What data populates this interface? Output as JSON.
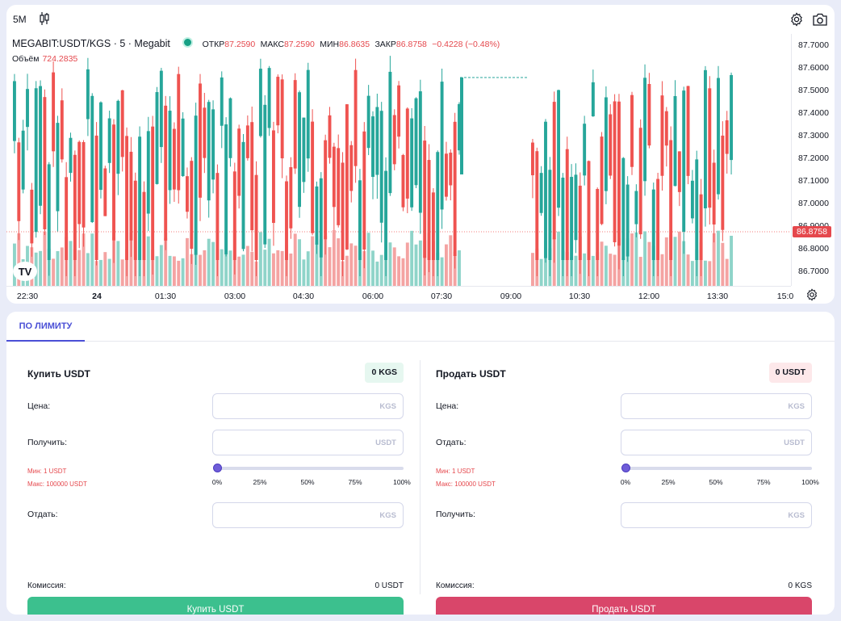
{
  "chart": {
    "interval": "5М",
    "symbol": "MEGABIT:USDT/KGS · 5 · Megabit",
    "ohlc": [
      {
        "label": "ОТКР",
        "value": "87.2590"
      },
      {
        "label": "МАКС",
        "value": "87.2590"
      },
      {
        "label": "МИН",
        "value": "86.8635"
      },
      {
        "label": "ЗАКР",
        "value": "86.8758"
      }
    ],
    "change": "−0.4228 (−0.48%)",
    "volume_label": "Объём",
    "volume_value": "724.2835",
    "last_price": "86.8758",
    "price_ticks": [
      "87.7000",
      "87.6000",
      "87.5000",
      "87.4000",
      "87.3000",
      "87.2000",
      "87.1000",
      "87.0000",
      "86.9000",
      "86.8000",
      "86.7000"
    ],
    "time_ticks": [
      "22:30",
      "24",
      "01:30",
      "03:00",
      "04:30",
      "06:00",
      "07:30",
      "09:00",
      "10:30",
      "12:00",
      "13:30",
      "15:0"
    ],
    "colors": {
      "up": "#26a69a",
      "down": "#ef5350",
      "up_vol": "#8fd4c9",
      "down_vol": "#f4a3a2"
    }
  },
  "order": {
    "tab": "ПО ЛИМИТУ",
    "buy": {
      "title": "Купить USDT",
      "balance": "0 KGS",
      "price_label": "Цена:",
      "price_unit": "KGS",
      "get_label": "Получить:",
      "get_unit": "USDT",
      "min": "Мин: 1 USDT",
      "max": "Макс: 100000 USDT",
      "slider_marks": [
        "0%",
        "25%",
        "50%",
        "75%",
        "100%"
      ],
      "give_label": "Отдать:",
      "give_unit": "KGS",
      "fee_label": "Комиссия:",
      "fee_value": "0 USDT",
      "button": "Купить USDT"
    },
    "sell": {
      "title": "Продать USDT",
      "balance": "0 USDT",
      "price_label": "Цена:",
      "price_unit": "KGS",
      "give_label": "Отдать:",
      "give_unit": "USDT",
      "min": "Мин: 1 USDT",
      "max": "Макс: 100000 USDT",
      "slider_marks": [
        "0%",
        "25%",
        "50%",
        "75%",
        "100%"
      ],
      "get_label": "Получить:",
      "get_unit": "KGS",
      "fee_label": "Комиссия:",
      "fee_value": "0 KGS",
      "button": "Продать USDT"
    }
  }
}
